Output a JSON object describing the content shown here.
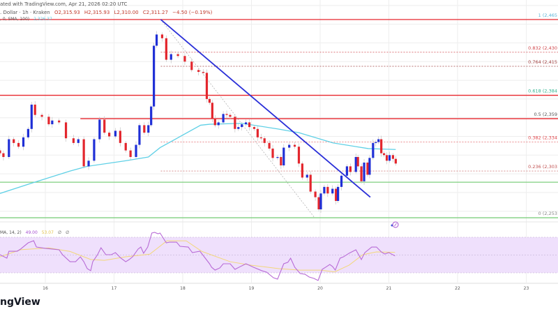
{
  "header": {
    "watermark_line": "ated with TradingView.com, Apr 21, 2026 02:20 UTC",
    "symbol": ". Dollar · 1h · Kraken",
    "open": "O2,315.93",
    "high": "H2,315.93",
    "low": "L2,310.00",
    "close": "C2,311.27",
    "change": "−4.50 (−0.19%)",
    "sma_label": ", 0, SMA, 100)",
    "sma_value": "2,326.37",
    "rsi_label": "MA, 14, 2)",
    "rsi_value": "49.00",
    "rsi_ma_value": "53.07",
    "rsi_extra1": "∅",
    "rsi_extra2": "∅"
  },
  "logo_text": "ngView",
  "colors": {
    "up": "#1f2fd6",
    "down": "#e3262d",
    "sma": "#5fd0e6",
    "resistance": "#e8262e",
    "support": "#7fcf7f",
    "trendline": "#2a2fd8",
    "rsi": "#b86bd6",
    "rsi_ma": "#f2d77a",
    "rsi_band": "#efe0fc"
  },
  "icons": {
    "replay": "replay-circle-icon"
  },
  "chart_data": {
    "type": "candlestick",
    "x_unit": "day of April 2026",
    "x_ticks": [
      "16",
      "17",
      "18",
      "19",
      "20",
      "21",
      "22",
      "23"
    ],
    "ylim": [
      2240,
      2480
    ],
    "grid": true,
    "closes": [
      [
        15.34,
        2322
      ],
      [
        15.39,
        2318
      ],
      [
        15.47,
        2337
      ],
      [
        15.54,
        2333
      ],
      [
        15.61,
        2329
      ],
      [
        15.68,
        2339
      ],
      [
        15.75,
        2348
      ],
      [
        15.8,
        2374
      ],
      [
        15.85,
        2363
      ],
      [
        15.95,
        2361
      ],
      [
        16.05,
        2353
      ],
      [
        16.1,
        2357
      ],
      [
        16.2,
        2355
      ],
      [
        16.3,
        2338
      ],
      [
        16.41,
        2333
      ],
      [
        16.48,
        2337
      ],
      [
        16.56,
        2308
      ],
      [
        16.63,
        2314
      ],
      [
        16.71,
        2337
      ],
      [
        16.79,
        2358
      ],
      [
        16.86,
        2344
      ],
      [
        16.93,
        2340
      ],
      [
        17.02,
        2346
      ],
      [
        17.09,
        2333
      ],
      [
        17.17,
        2325
      ],
      [
        17.24,
        2318
      ],
      [
        17.32,
        2331
      ],
      [
        17.37,
        2352
      ],
      [
        17.44,
        2344
      ],
      [
        17.5,
        2352
      ],
      [
        17.54,
        2372
      ],
      [
        17.58,
        2437
      ],
      [
        17.62,
        2449
      ],
      [
        17.7,
        2445
      ],
      [
        17.76,
        2422
      ],
      [
        17.83,
        2428
      ],
      [
        17.93,
        2426
      ],
      [
        18.03,
        2420
      ],
      [
        18.13,
        2411
      ],
      [
        18.23,
        2409
      ],
      [
        18.3,
        2408
      ],
      [
        18.35,
        2380
      ],
      [
        18.39,
        2376
      ],
      [
        18.43,
        2359
      ],
      [
        18.47,
        2352
      ],
      [
        18.52,
        2355
      ],
      [
        18.59,
        2364
      ],
      [
        18.64,
        2363
      ],
      [
        18.69,
        2361
      ],
      [
        18.76,
        2348
      ],
      [
        18.81,
        2350
      ],
      [
        18.86,
        2353
      ],
      [
        18.92,
        2355
      ],
      [
        18.97,
        2350
      ],
      [
        19.04,
        2348
      ],
      [
        19.09,
        2339
      ],
      [
        19.14,
        2338
      ],
      [
        19.19,
        2333
      ],
      [
        19.26,
        2327
      ],
      [
        19.31,
        2317
      ],
      [
        19.38,
        2318
      ],
      [
        19.43,
        2309
      ],
      [
        19.47,
        2328
      ],
      [
        19.55,
        2331
      ],
      [
        19.63,
        2329
      ],
      [
        19.69,
        2311
      ],
      [
        19.74,
        2296
      ],
      [
        19.81,
        2299
      ],
      [
        19.86,
        2281
      ],
      [
        19.93,
        2275
      ],
      [
        19.98,
        2262
      ],
      [
        20.01,
        2279
      ],
      [
        20.06,
        2286
      ],
      [
        20.11,
        2279
      ],
      [
        20.18,
        2284
      ],
      [
        20.23,
        2271
      ],
      [
        20.26,
        2286
      ],
      [
        20.31,
        2298
      ],
      [
        20.39,
        2308
      ],
      [
        20.44,
        2302
      ],
      [
        20.52,
        2318
      ],
      [
        20.55,
        2308
      ],
      [
        20.6,
        2292
      ],
      [
        20.64,
        2312
      ],
      [
        20.69,
        2299
      ],
      [
        20.72,
        2317
      ],
      [
        20.77,
        2333
      ],
      [
        20.81,
        2334
      ],
      [
        20.85,
        2337
      ],
      [
        20.89,
        2322
      ],
      [
        20.93,
        2320
      ],
      [
        20.97,
        2314
      ],
      [
        21.01,
        2320
      ],
      [
        21.06,
        2316
      ],
      [
        21.1,
        2311
      ]
    ],
    "sma100": [
      [
        15.34,
        2279
      ],
      [
        15.8,
        2290
      ],
      [
        16.36,
        2303
      ],
      [
        16.61,
        2308
      ],
      [
        17.17,
        2314
      ],
      [
        17.5,
        2318
      ],
      [
        17.67,
        2328
      ],
      [
        18.26,
        2352
      ],
      [
        18.39,
        2353
      ],
      [
        18.86,
        2354
      ],
      [
        19.38,
        2348
      ],
      [
        19.69,
        2344
      ],
      [
        20.19,
        2333
      ],
      [
        20.7,
        2327
      ],
      [
        21.1,
        2326
      ]
    ],
    "horizontal_levels": [
      {
        "kind": "resistance",
        "price": 2465,
        "from_day": 15.34
      },
      {
        "kind": "resistance",
        "price": 2384,
        "from_day": 15.34
      },
      {
        "kind": "resistance",
        "price": 2359,
        "from_day": 16.51
      },
      {
        "kind": "support",
        "price": 2291,
        "from_day": 15.34
      },
      {
        "kind": "support",
        "price": 2253,
        "from_day": 15.34
      }
    ],
    "trendline": [
      [
        17.68,
        2465
      ],
      [
        20.73,
        2275
      ]
    ],
    "fib_retracement": {
      "from": [
        17.68,
        2465
      ],
      "to": [
        19.92,
        2253
      ],
      "levels": [
        {
          "label": "1 (2,465",
          "price": 2465,
          "color": "#5ab4d8"
        },
        {
          "label": "0.832 (2,430",
          "price": 2430,
          "color": "#d0454a"
        },
        {
          "label": "0.764 (2,415",
          "price": 2415,
          "color": "#a04040"
        },
        {
          "label": "0.618 (2,384",
          "price": 2384,
          "color": "#2fb38f"
        },
        {
          "label": "0.5 (2,359",
          "price": 2359,
          "color": "#555555"
        },
        {
          "label": "0.382 (2,334",
          "price": 2334,
          "color": "#e0454a"
        },
        {
          "label": "0.236 (2,303",
          "price": 2303,
          "color": "#c05050"
        },
        {
          "label": "0 (2,253",
          "price": 2253,
          "color": "#888888"
        }
      ]
    },
    "rsi": {
      "overbought": 70,
      "oversold": 30,
      "values": [
        [
          15.34,
          50.4
        ],
        [
          15.44,
          46.5
        ],
        [
          15.47,
          54.3
        ],
        [
          15.59,
          54.3
        ],
        [
          15.64,
          56.7
        ],
        [
          15.75,
          63.7
        ],
        [
          15.83,
          66.1
        ],
        [
          15.87,
          59
        ],
        [
          16.0,
          57.5
        ],
        [
          16.1,
          56.7
        ],
        [
          16.2,
          55.9
        ],
        [
          16.25,
          50.4
        ],
        [
          16.36,
          42.5
        ],
        [
          16.44,
          42.5
        ],
        [
          16.51,
          48
        ],
        [
          16.56,
          42.5
        ],
        [
          16.61,
          34.7
        ],
        [
          16.66,
          32.4
        ],
        [
          16.69,
          42.5
        ],
        [
          16.76,
          50.4
        ],
        [
          16.81,
          58.2
        ],
        [
          16.88,
          50.4
        ],
        [
          16.96,
          50.4
        ],
        [
          17.02,
          52.7
        ],
        [
          17.1,
          46.5
        ],
        [
          17.17,
          42.5
        ],
        [
          17.22,
          44.9
        ],
        [
          17.27,
          48
        ],
        [
          17.35,
          56.7
        ],
        [
          17.39,
          59
        ],
        [
          17.43,
          52
        ],
        [
          17.49,
          59
        ],
        [
          17.55,
          74.7
        ],
        [
          17.59,
          75.5
        ],
        [
          17.64,
          73.9
        ],
        [
          17.67,
          74.7
        ],
        [
          17.76,
          63.7
        ],
        [
          17.81,
          64.5
        ],
        [
          17.91,
          64.5
        ],
        [
          17.96,
          59.8
        ],
        [
          18.08,
          59
        ],
        [
          18.14,
          52.7
        ],
        [
          18.25,
          54.3
        ],
        [
          18.39,
          40.2
        ],
        [
          18.42,
          36.3
        ],
        [
          18.47,
          33.1
        ],
        [
          18.54,
          35.5
        ],
        [
          18.59,
          40.2
        ],
        [
          18.69,
          40.2
        ],
        [
          18.76,
          33.9
        ],
        [
          18.84,
          37.1
        ],
        [
          18.92,
          40.2
        ],
        [
          19.03,
          36.3
        ],
        [
          19.15,
          32.4
        ],
        [
          19.22,
          30.8
        ],
        [
          19.32,
          24.5
        ],
        [
          19.38,
          22.9
        ],
        [
          19.47,
          40.2
        ],
        [
          19.53,
          41.8
        ],
        [
          19.57,
          46.5
        ],
        [
          19.63,
          36.3
        ],
        [
          19.71,
          29.2
        ],
        [
          19.78,
          28.4
        ],
        [
          19.84,
          25.3
        ],
        [
          19.91,
          23.7
        ],
        [
          19.97,
          21.4
        ],
        [
          20.03,
          33.9
        ],
        [
          20.08,
          36.3
        ],
        [
          20.14,
          39.4
        ],
        [
          20.18,
          37.1
        ],
        [
          20.22,
          33.1
        ],
        [
          20.29,
          46.5
        ],
        [
          20.34,
          48
        ],
        [
          20.42,
          52
        ],
        [
          20.52,
          55.9
        ],
        [
          20.6,
          44.9
        ],
        [
          20.65,
          52.7
        ],
        [
          20.75,
          59
        ],
        [
          20.82,
          59
        ],
        [
          20.89,
          53.5
        ],
        [
          20.94,
          51.2
        ],
        [
          21.0,
          52.7
        ],
        [
          21.09,
          49.0
        ]
      ],
      "ma": [
        [
          15.34,
          48
        ],
        [
          15.64,
          56
        ],
        [
          16.05,
          58
        ],
        [
          16.36,
          54
        ],
        [
          16.66,
          45
        ],
        [
          16.86,
          44
        ],
        [
          17.17,
          48
        ],
        [
          17.52,
          51
        ],
        [
          17.77,
          66
        ],
        [
          18.05,
          66
        ],
        [
          18.28,
          54
        ],
        [
          18.69,
          42.5
        ],
        [
          18.99,
          38.6
        ],
        [
          19.4,
          34.7
        ],
        [
          19.71,
          33
        ],
        [
          20.01,
          33
        ],
        [
          20.21,
          31
        ],
        [
          20.42,
          38.6
        ],
        [
          20.62,
          50.4
        ],
        [
          20.82,
          53.5
        ],
        [
          21.09,
          53.07
        ]
      ]
    }
  }
}
